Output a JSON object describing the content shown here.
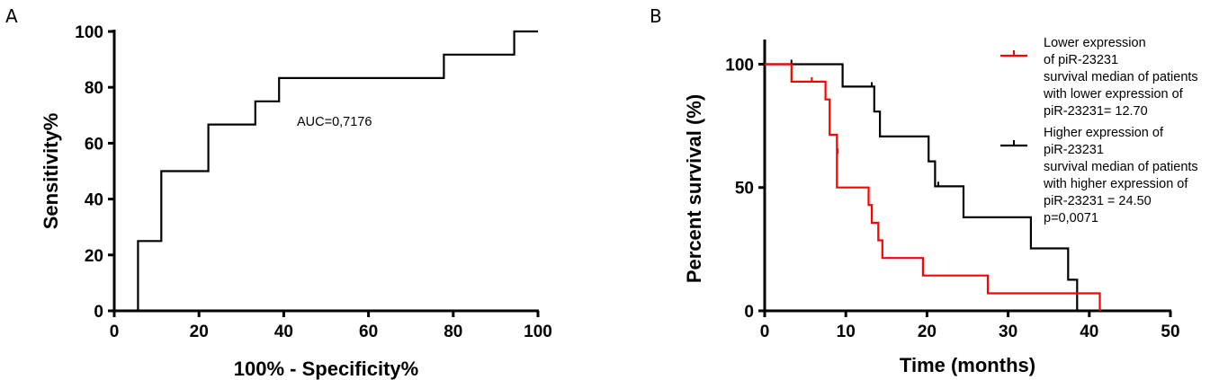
{
  "panels": {
    "a": {
      "letter": "A"
    },
    "b": {
      "letter": "B"
    }
  },
  "chart_data": [
    {
      "type": "line",
      "xlabel": "100% - Specificity%",
      "ylabel": "Sensitivity%",
      "xlim": [
        0,
        100
      ],
      "ylim": [
        0,
        100
      ],
      "xticks": [
        0,
        20,
        40,
        60,
        80,
        100
      ],
      "yticks": [
        0,
        20,
        40,
        60,
        80,
        100
      ],
      "annotation": "AUC=0,7176",
      "series": [
        {
          "color": "#000000",
          "step": true,
          "points": [
            [
              5.6,
              0
            ],
            [
              5.6,
              25
            ],
            [
              11.1,
              25
            ],
            [
              11.1,
              50
            ],
            [
              22.2,
              50
            ],
            [
              22.2,
              66.7
            ],
            [
              33.3,
              66.7
            ],
            [
              33.3,
              75
            ],
            [
              38.9,
              75
            ],
            [
              38.9,
              83.3
            ],
            [
              77.8,
              83.3
            ],
            [
              77.8,
              91.7
            ],
            [
              94.4,
              91.7
            ],
            [
              94.4,
              100
            ],
            [
              100,
              100
            ]
          ]
        }
      ]
    },
    {
      "type": "line",
      "xlabel": "Time (months)",
      "ylabel": "Percent survival (%)",
      "xlim": [
        0,
        50
      ],
      "ylim": [
        0,
        110
      ],
      "xticks": [
        0,
        10,
        20,
        30,
        40,
        50
      ],
      "yticks": [
        0,
        50,
        100
      ],
      "legend_position": "right",
      "series": [
        {
          "color": "#ff0000",
          "legend": [
            "Lower expression",
            "of piR-23231",
            "survival median of patients",
            "with lower expression of",
            "piR-23231= 12.70"
          ],
          "steps": [
            [
              0,
              100
            ],
            [
              3.3,
              92.9
            ],
            [
              7.5,
              85.7
            ],
            [
              8,
              71.4
            ],
            [
              8.9,
              50
            ],
            [
              12.8,
              42.9
            ],
            [
              13.2,
              35.7
            ],
            [
              14,
              28.6
            ],
            [
              14.5,
              21.4
            ],
            [
              19.5,
              14.3
            ],
            [
              27.5,
              7.1
            ],
            [
              41.3,
              0
            ]
          ],
          "censored": [
            [
              5.8,
              92.9
            ],
            [
              9,
              64
            ]
          ]
        },
        {
          "color": "#000000",
          "legend": [
            "Higher expression of",
            "piR-23231",
            "survival median of patients",
            "with higher expression of",
            "piR-23231 = 24.50",
            "p=0,0071"
          ],
          "steps": [
            [
              0,
              100
            ],
            [
              9.6,
              90.9
            ],
            [
              13.5,
              80.8
            ],
            [
              14.2,
              70.7
            ],
            [
              20.2,
              60.6
            ],
            [
              21,
              50.5
            ],
            [
              24.5,
              37.9
            ],
            [
              32.8,
              25.3
            ],
            [
              37.4,
              12.6
            ],
            [
              38.5,
              0
            ],
            [
              50,
              0
            ]
          ],
          "censored": [
            [
              3.3,
              100
            ],
            [
              13.2,
              90.9
            ],
            [
              21.4,
              50.5
            ]
          ]
        }
      ]
    }
  ]
}
